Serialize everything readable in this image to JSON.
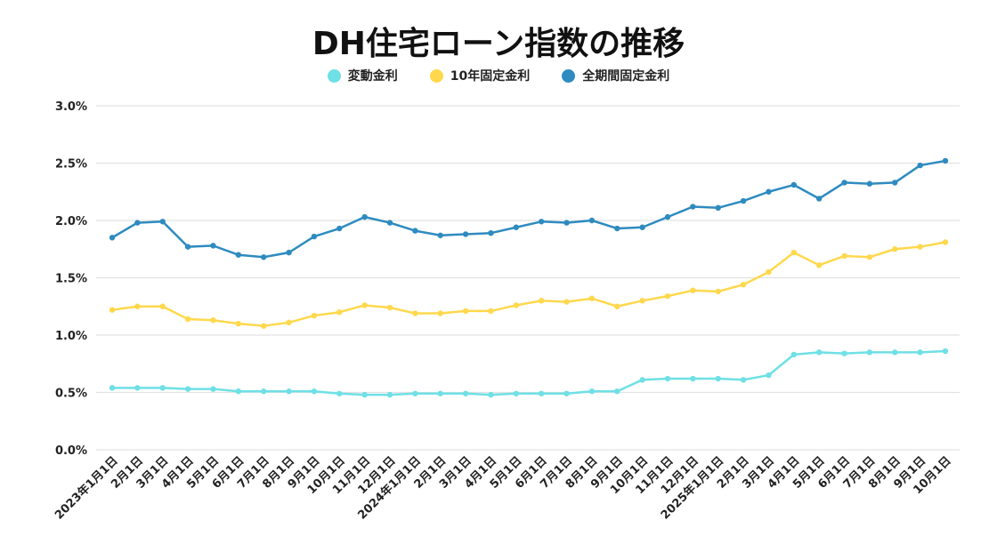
{
  "chart_data": {
    "type": "line",
    "title": "DH住宅ローン指数の推移",
    "xlabel": "",
    "ylabel": "",
    "ylim": [
      0,
      3.0
    ],
    "yticks": [
      "0.0%",
      "0.5%",
      "1.0%",
      "1.5%",
      "2.0%",
      "2.5%",
      "3.0%"
    ],
    "grid": true,
    "legend_position": "top-center",
    "categories": [
      "2023年1月1日",
      "2月1日",
      "3月1日",
      "4月1日",
      "5月1日",
      "6月1日",
      "7月1日",
      "8月1日",
      "9月1日",
      "10月1日",
      "11月1日",
      "12月1日",
      "2024年1月1日",
      "2月1日",
      "3月1日",
      "4月1日",
      "5月1日",
      "6月1日",
      "7月1日",
      "8月1日",
      "9月1日",
      "10月1日",
      "11月1日",
      "12月1日",
      "2025年1月1日",
      "2月1日",
      "3月1日",
      "4月1日",
      "5月1日",
      "6月1日",
      "7月1日",
      "8月1日",
      "9月1日",
      "10月1日"
    ],
    "series": [
      {
        "name": "変動金利",
        "color": "#6EE0E6",
        "values": [
          0.54,
          0.54,
          0.54,
          0.53,
          0.53,
          0.51,
          0.51,
          0.51,
          0.51,
          0.49,
          0.48,
          0.48,
          0.49,
          0.49,
          0.49,
          0.48,
          0.49,
          0.49,
          0.49,
          0.51,
          0.51,
          0.61,
          0.62,
          0.62,
          0.62,
          0.61,
          0.65,
          0.83,
          0.85,
          0.84,
          0.85,
          0.85,
          0.85,
          0.86
        ]
      },
      {
        "name": "10年固定金利",
        "color": "#FFD84D",
        "values": [
          1.22,
          1.25,
          1.25,
          1.14,
          1.13,
          1.1,
          1.08,
          1.11,
          1.17,
          1.2,
          1.26,
          1.24,
          1.19,
          1.19,
          1.21,
          1.21,
          1.26,
          1.3,
          1.29,
          1.32,
          1.25,
          1.3,
          1.34,
          1.39,
          1.38,
          1.44,
          1.55,
          1.72,
          1.61,
          1.69,
          1.68,
          1.75,
          1.77,
          1.81
        ]
      },
      {
        "name": "全期間固定金利",
        "color": "#2E8BC0",
        "values": [
          1.85,
          1.98,
          1.99,
          1.77,
          1.78,
          1.7,
          1.68,
          1.72,
          1.86,
          1.93,
          2.03,
          1.98,
          1.91,
          1.87,
          1.88,
          1.89,
          1.94,
          1.99,
          1.98,
          2.0,
          1.93,
          1.94,
          2.03,
          2.12,
          2.11,
          2.17,
          2.25,
          2.31,
          2.19,
          2.33,
          2.32,
          2.33,
          2.48,
          2.52
        ]
      }
    ]
  }
}
